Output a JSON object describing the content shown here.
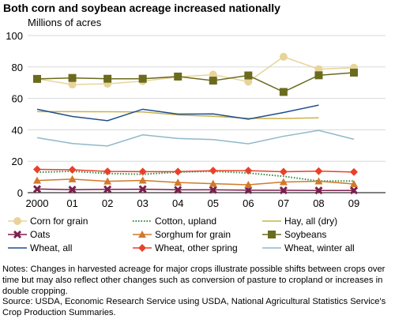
{
  "title": "Both corn and soybean acreage increased nationally",
  "chart_data": {
    "type": "line",
    "ylabel": "Millions of acres",
    "xlabel": "",
    "ylim": [
      0,
      100
    ],
    "yticks": [
      0,
      20,
      40,
      60,
      80,
      100
    ],
    "categories": [
      "2000",
      "01",
      "02",
      "03",
      "04",
      "05",
      "06",
      "07",
      "08",
      "09"
    ],
    "grid": "horizontal",
    "legend_position": "bottom",
    "series": [
      {
        "name": "Corn for grain",
        "color": "#e8d49a",
        "marker": "circle",
        "line": "solid",
        "values": [
          72.4,
          68.8,
          69.3,
          71.0,
          73.6,
          75.1,
          70.6,
          86.5,
          78.6,
          79.5
        ]
      },
      {
        "name": "Cotton, upland",
        "color": "#2e8b3e",
        "marker": "none",
        "line": "dotted",
        "values": [
          13.0,
          13.6,
          12.2,
          11.7,
          13.1,
          13.6,
          12.5,
          10.4,
          7.4,
          7.4
        ]
      },
      {
        "name": "Hay, all (dry)",
        "color": "#c9b24a",
        "marker": "none",
        "line": "solid",
        "values": [
          51.6,
          51.6,
          51.5,
          51.4,
          49.5,
          48.6,
          47.3,
          47.2,
          47.6,
          null
        ]
      },
      {
        "name": "Oats",
        "color": "#7a1f4e",
        "marker": "x",
        "line": "solid",
        "values": [
          2.3,
          1.9,
          2.1,
          2.2,
          1.8,
          1.8,
          1.6,
          1.5,
          1.4,
          1.4
        ]
      },
      {
        "name": "Sorghum for grain",
        "color": "#d2792a",
        "marker": "triangle",
        "line": "solid",
        "values": [
          7.7,
          8.6,
          7.2,
          7.8,
          6.5,
          5.7,
          5.0,
          6.8,
          7.3,
          5.5
        ]
      },
      {
        "name": "Soybeans",
        "color": "#6b6b1e",
        "marker": "square",
        "line": "solid",
        "values": [
          72.4,
          73.0,
          72.5,
          72.5,
          73.9,
          71.3,
          74.6,
          64.1,
          74.7,
          76.4
        ]
      },
      {
        "name": "Wheat, all",
        "color": "#1f4e8c",
        "marker": "none",
        "line": "solid",
        "values": [
          53.1,
          48.5,
          45.8,
          53.1,
          50.0,
          50.1,
          46.8,
          51.0,
          55.7,
          null
        ]
      },
      {
        "name": "Wheat, other spring",
        "color": "#e8412b",
        "marker": "diamond",
        "line": "solid",
        "values": [
          14.8,
          14.6,
          13.5,
          13.4,
          13.4,
          14.0,
          14.0,
          13.3,
          13.7,
          13.1
        ]
      },
      {
        "name": "Wheat, winter all",
        "color": "#8fb8c8",
        "marker": "none",
        "line": "solid",
        "values": [
          35.0,
          31.3,
          29.7,
          36.8,
          34.5,
          33.8,
          31.1,
          35.9,
          39.6,
          34.0
        ]
      }
    ]
  },
  "notes": "Notes: Changes in harvested acreage for major crops illustrate possible shifts between crops over time but may also reflect other changes such as conversion of pasture to cropland or increases in double cropping.",
  "source": "Source: USDA, Economic Research Service using USDA, National Agricultural Statistics Service's Crop Production Summaries."
}
